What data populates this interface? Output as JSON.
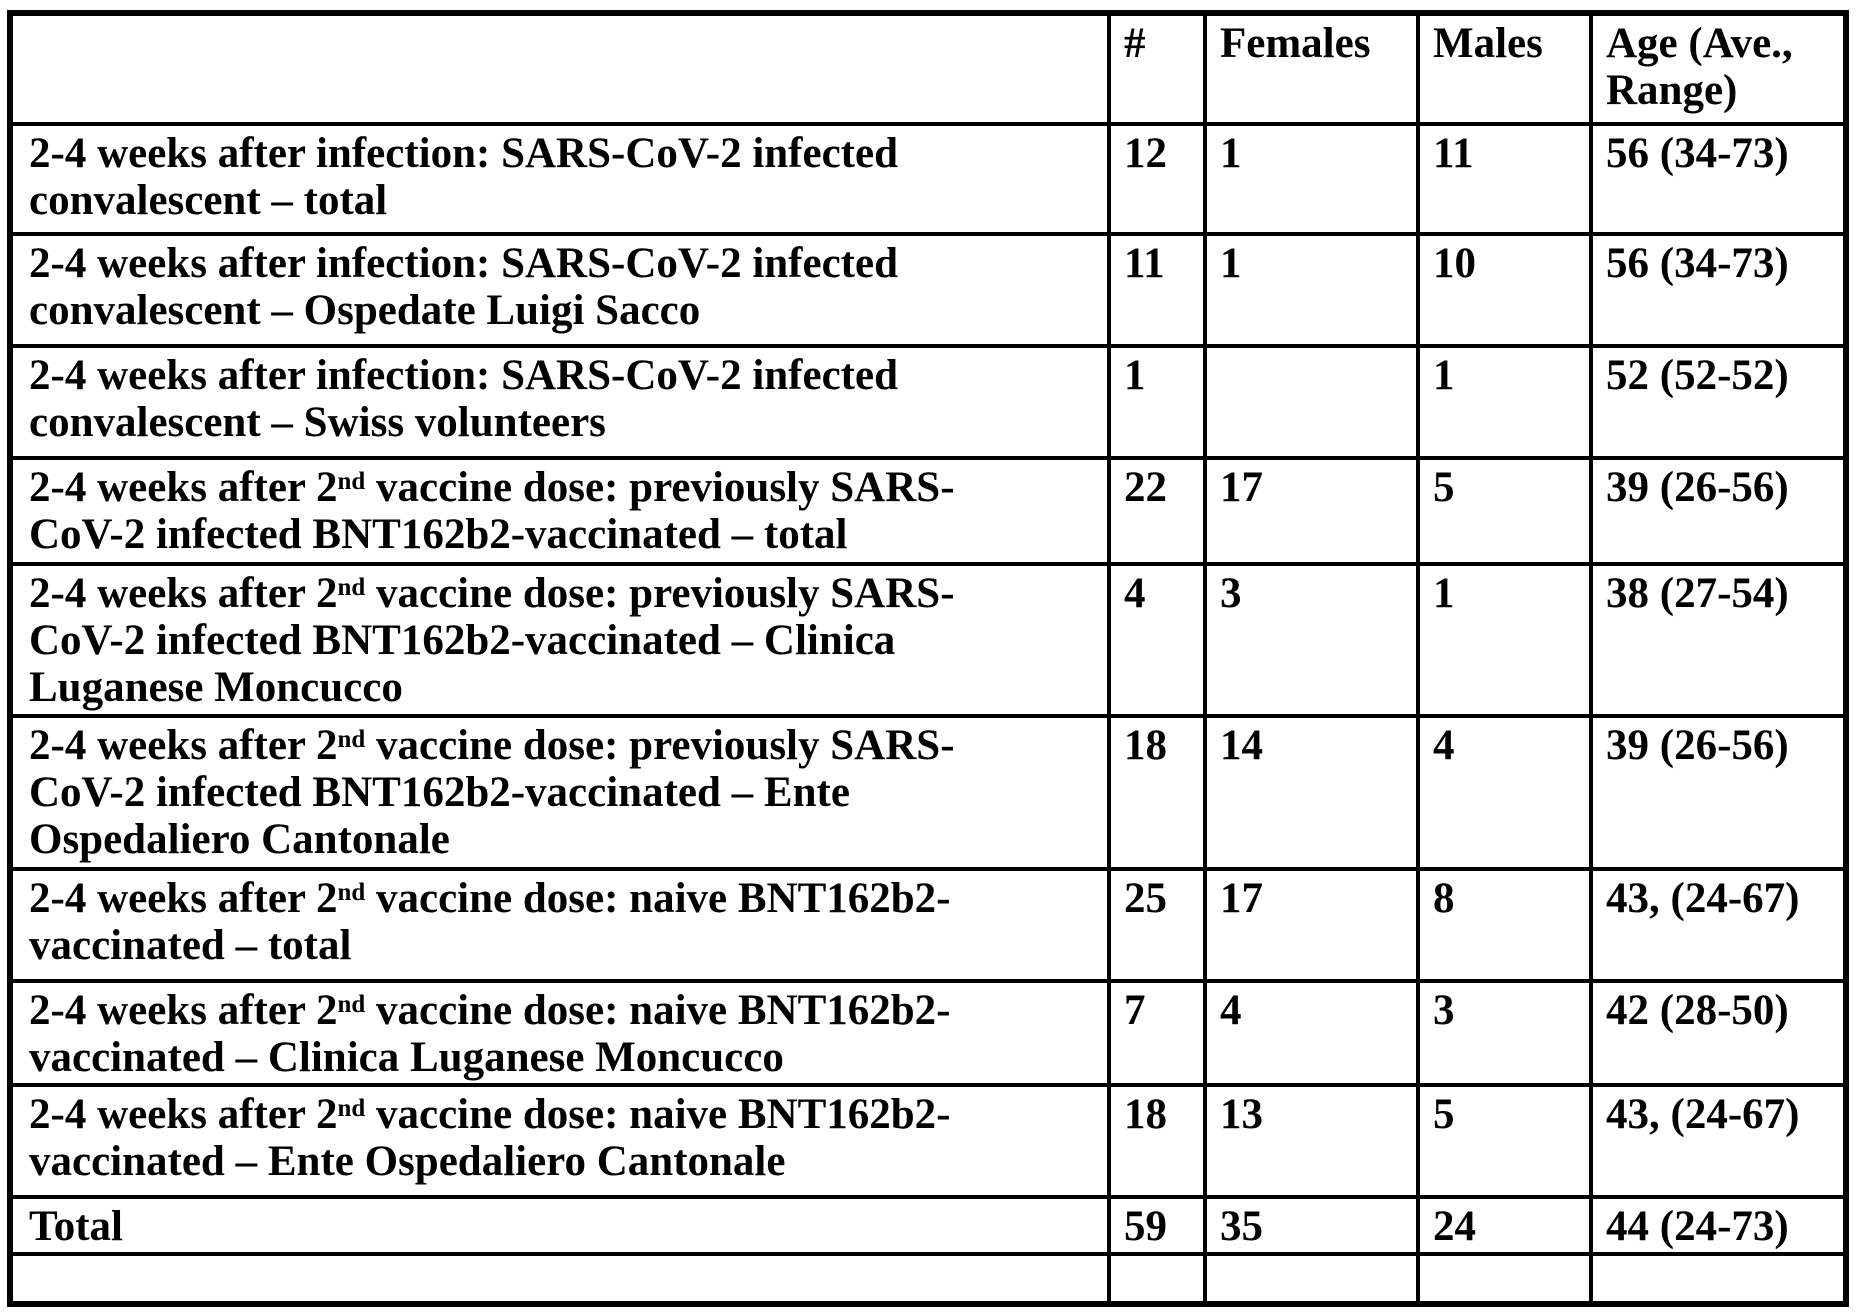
{
  "table": {
    "headers": {
      "label": "",
      "count": "#",
      "females": "Females",
      "males": "Males",
      "age": "Age (Ave.,\nRange)"
    },
    "rows": [
      {
        "label": "2-4 weeks after infection: SARS-CoV-2 infected\nconvalescent – total",
        "count": "12",
        "females": "1",
        "males": "11",
        "age": "56 (34-73)"
      },
      {
        "label": "2-4 weeks after infection: SARS-CoV-2 infected\nconvalescent – Ospedate Luigi Sacco",
        "count": "11",
        "females": "1",
        "males": "10",
        "age": "56 (34-73)"
      },
      {
        "label": "2-4 weeks after infection: SARS-CoV-2 infected\nconvalescent – Swiss volunteers",
        "count": "1",
        "females": "",
        "males": "1",
        "age": "52 (52-52)"
      },
      {
        "label": "2-4 weeks after 2[sup]nd[/sup] vaccine dose: previously SARS-\nCoV-2 infected BNT162b2-vaccinated – total",
        "count": "22",
        "females": "17",
        "males": "5",
        "age": "39 (26-56)"
      },
      {
        "label": "2-4 weeks after 2[sup]nd[/sup] vaccine dose: previously SARS-\nCoV-2 infected BNT162b2-vaccinated – Clinica\nLuganese Moncucco",
        "count": "4",
        "females": "3",
        "males": "1",
        "age": "38 (27-54)"
      },
      {
        "label": "2-4 weeks after 2[sup]nd[/sup] vaccine dose: previously SARS-\nCoV-2 infected BNT162b2-vaccinated – Ente\nOspedaliero Cantonale",
        "count": "18",
        "females": "14",
        "males": "4",
        "age": "39 (26-56)"
      },
      {
        "label": "2-4 weeks after 2[sup]nd[/sup] vaccine dose: naive BNT162b2-\nvaccinated – total",
        "count": "25",
        "females": "17",
        "males": "8",
        "age": "43, (24-67)"
      },
      {
        "label": "2-4 weeks after 2[sup]nd[/sup] vaccine dose: naive BNT162b2-\nvaccinated – Clinica Luganese Moncucco",
        "count": "7",
        "females": "4",
        "males": "3",
        "age": "42 (28-50)"
      },
      {
        "label": "2-4 weeks after 2[sup]nd[/sup] vaccine dose: naive BNT162b2-\nvaccinated – Ente Ospedaliero Cantonale",
        "count": "18",
        "females": "13",
        "males": "5",
        "age": "43, (24-67)"
      },
      {
        "label": "Total",
        "count": "59",
        "females": "35",
        "males": "24",
        "age": "44 (24-73)"
      },
      {
        "label": "",
        "count": "",
        "females": "",
        "males": "",
        "age": ""
      }
    ]
  },
  "colors": {
    "text": "#000000",
    "border": "#000000",
    "background": "#ffffff"
  }
}
